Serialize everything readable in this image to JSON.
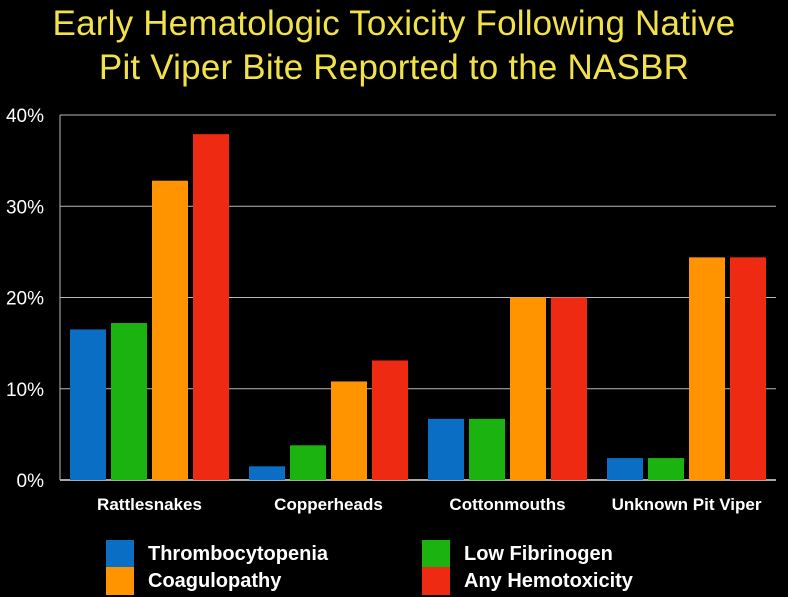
{
  "title": {
    "line1": "Early Hematologic Toxicity Following Native",
    "line2": "Pit Viper Bite Reported to the NASBR"
  },
  "chart_data": {
    "type": "bar",
    "categories": [
      "Rattlesnakes",
      "Copperheads",
      "Cottonmouths",
      "Unknown Pit Viper"
    ],
    "series": [
      {
        "name": "Thrombocytopenia",
        "color": "#0A6FC4",
        "values": [
          16.5,
          1.5,
          6.7,
          2.4
        ]
      },
      {
        "name": "Low Fibrinogen",
        "color": "#1BB30F",
        "values": [
          17.2,
          3.8,
          6.7,
          2.4
        ]
      },
      {
        "name": "Coagulopathy",
        "color": "#FF9400",
        "values": [
          32.8,
          10.8,
          20.0,
          24.4
        ]
      },
      {
        "name": "Any Hemotoxicity",
        "color": "#EE2A12",
        "values": [
          37.9,
          13.1,
          20.0,
          24.4
        ]
      }
    ],
    "yticks": [
      "0%",
      "10%",
      "20%",
      "30%",
      "40%"
    ],
    "ylim": [
      0,
      40
    ],
    "grid": true,
    "legend_position": "bottom"
  }
}
